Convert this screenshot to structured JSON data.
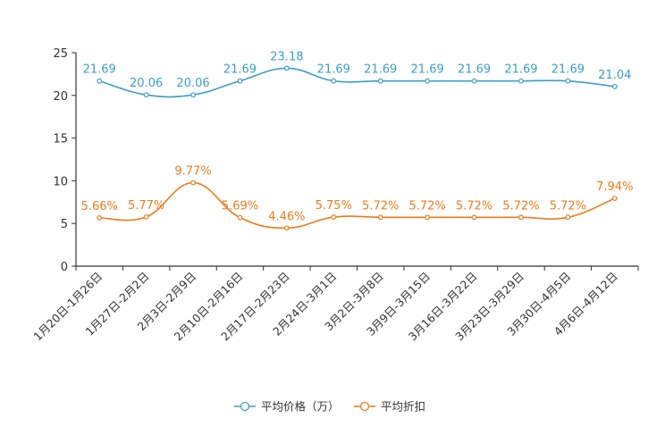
{
  "chart_data": {
    "type": "line",
    "categories": [
      "1月20日-1月26日",
      "1月27日-2月2日",
      "2月3日-2月9日",
      "2月10日-2月16日",
      "2月17日-2月23日",
      "2月24日-3月1日",
      "3月2日-3月8日",
      "3月9日-3月15日",
      "3月16日-3月22日",
      "3月23日-3月29日",
      "3月30日-4月5日",
      "4月6日-4月12日"
    ],
    "ylim": [
      0,
      25
    ],
    "yticks": [
      "0",
      "5",
      "10",
      "15",
      "20",
      "25"
    ],
    "series": [
      {
        "name": "平均价格（万）",
        "color": "#3a9fcb",
        "values": [
          21.69,
          20.06,
          20.06,
          21.69,
          23.18,
          21.69,
          21.69,
          21.69,
          21.69,
          21.69,
          21.69,
          21.04
        ],
        "labels": [
          "21.69",
          "20.06",
          "20.06",
          "21.69",
          "23.18",
          "21.69",
          "21.69",
          "21.69",
          "21.69",
          "21.69",
          "21.69",
          "21.04"
        ]
      },
      {
        "name": "平均折扣",
        "color": "#f07b1a",
        "values": [
          5.66,
          5.77,
          9.77,
          5.69,
          4.46,
          5.75,
          5.72,
          5.72,
          5.72,
          5.72,
          5.72,
          7.94
        ],
        "labels": [
          "5.66%",
          "5.77%",
          "9.77%",
          "5.69%",
          "4.46%",
          "5.75%",
          "5.72%",
          "5.72%",
          "5.72%",
          "5.72%",
          "5.72%",
          "7.94%"
        ]
      }
    ],
    "legend_position": "bottom-center"
  }
}
